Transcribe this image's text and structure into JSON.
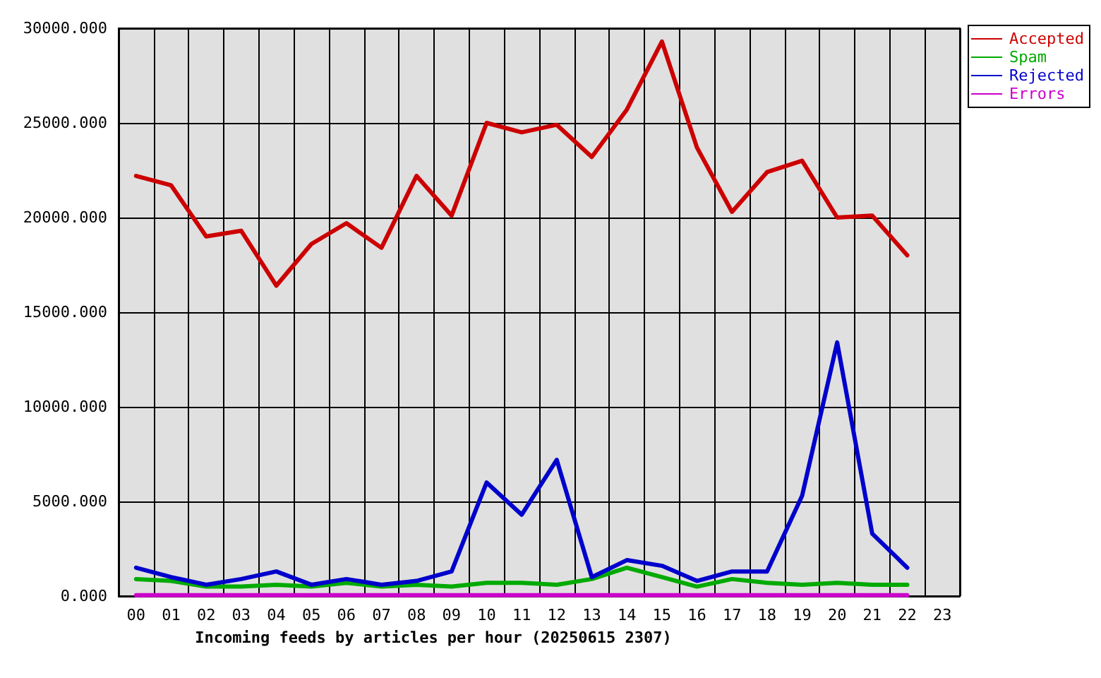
{
  "chart_data": {
    "type": "line",
    "xlabel": "Incoming feeds by articles per hour (20250615 2307)",
    "categories": [
      "00",
      "01",
      "02",
      "03",
      "04",
      "05",
      "06",
      "07",
      "08",
      "09",
      "10",
      "11",
      "12",
      "13",
      "14",
      "15",
      "16",
      "17",
      "18",
      "19",
      "20",
      "21",
      "22",
      "23"
    ],
    "series": [
      {
        "name": "Accepted",
        "color": "#cc0000",
        "values": [
          22200,
          21700,
          19000,
          19300,
          16400,
          18600,
          19700,
          18400,
          22200,
          20100,
          25000,
          24500,
          24900,
          23200,
          25700,
          29300,
          23700,
          20300,
          22400,
          23000,
          20000,
          20100,
          18000,
          null
        ]
      },
      {
        "name": "Spam",
        "color": "#00aa00",
        "values": [
          900,
          800,
          500,
          500,
          600,
          500,
          700,
          500,
          600,
          500,
          700,
          700,
          600,
          900,
          1500,
          1000,
          500,
          900,
          700,
          600,
          700,
          600,
          600,
          null
        ]
      },
      {
        "name": "Rejected",
        "color": "#0000cc",
        "values": [
          1500,
          1000,
          600,
          900,
          1300,
          600,
          900,
          600,
          800,
          1300,
          6000,
          4300,
          7200,
          1000,
          1900,
          1600,
          800,
          1300,
          1300,
          5300,
          13400,
          3300,
          1500,
          null
        ]
      },
      {
        "name": "Errors",
        "color": "#cc00cc",
        "values": [
          50,
          50,
          50,
          50,
          50,
          50,
          50,
          50,
          50,
          50,
          50,
          50,
          50,
          50,
          50,
          50,
          50,
          50,
          50,
          50,
          50,
          50,
          50,
          null
        ]
      }
    ],
    "ylim": [
      0,
      30000
    ],
    "yticks": [
      {
        "value": 0,
        "label": "0.000"
      },
      {
        "value": 5000,
        "label": "5000.000"
      },
      {
        "value": 10000,
        "label": "10000.000"
      },
      {
        "value": 15000,
        "label": "15000.000"
      },
      {
        "value": 20000,
        "label": "20000.000"
      },
      {
        "value": 25000,
        "label": "25000.000"
      },
      {
        "value": 30000,
        "label": "30000.000"
      }
    ],
    "grid": true,
    "legend": "top right",
    "marker": "none",
    "line_style": "solid"
  }
}
